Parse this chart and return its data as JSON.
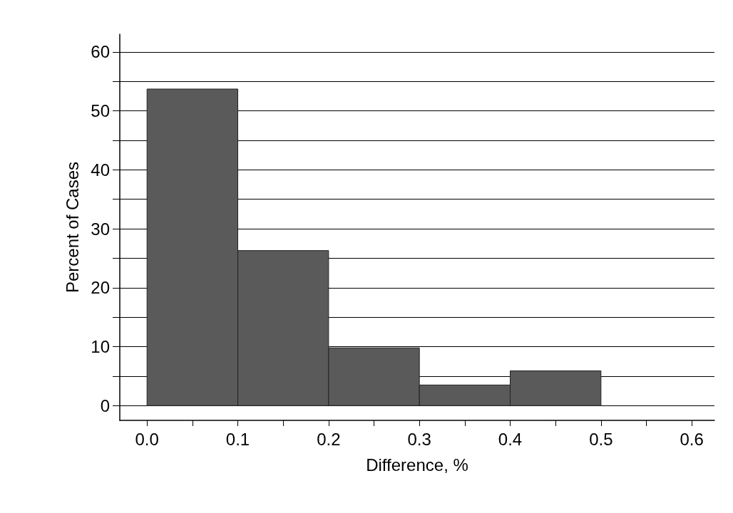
{
  "chart_data": {
    "type": "histogram",
    "xlabel": "Difference, %",
    "ylabel": "Percent of Cases",
    "bins": [
      0.0,
      0.1,
      0.2,
      0.3,
      0.4,
      0.5
    ],
    "values": [
      53.7,
      26.3,
      9.8,
      3.5,
      5.9
    ],
    "color": "#5a5a5a",
    "xlim": [
      -0.03,
      0.625
    ],
    "xticks": [
      {
        "value": 0,
        "label": "0.0"
      },
      {
        "value": 0.05,
        "label": null
      },
      {
        "value": 0.1,
        "label": "0.1"
      },
      {
        "value": 0.15,
        "label": null
      },
      {
        "value": 0.2,
        "label": "0.2"
      },
      {
        "value": 0.25,
        "label": null
      },
      {
        "value": 0.3,
        "label": "0.3"
      },
      {
        "value": 0.35,
        "label": null
      },
      {
        "value": 0.4,
        "label": "0.4"
      },
      {
        "value": 0.45,
        "label": null
      },
      {
        "value": 0.5,
        "label": "0.5"
      },
      {
        "value": 0.55,
        "label": null
      },
      {
        "value": 0.6,
        "label": "0.6"
      }
    ],
    "ylim": [
      -2.5,
      63
    ],
    "yticks": [
      0,
      {
        "value": 5,
        "label": null
      },
      10,
      {
        "value": 15,
        "label": null
      },
      20,
      {
        "value": 25,
        "label": null
      },
      30,
      {
        "value": 35,
        "label": null
      },
      40,
      {
        "value": 45,
        "label": null
      },
      50,
      {
        "value": 55,
        "label": null
      },
      60
    ],
    "grid": "y"
  }
}
